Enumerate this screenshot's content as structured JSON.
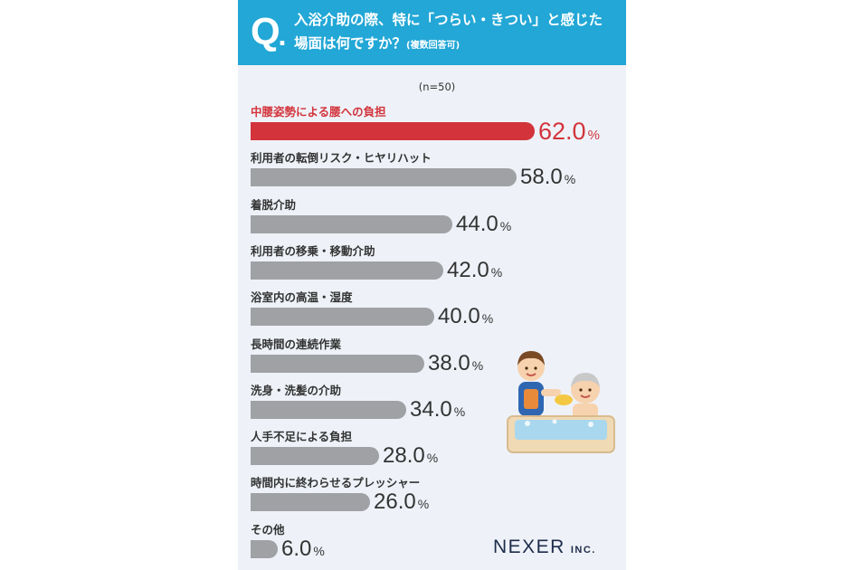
{
  "question": {
    "mark": "Q",
    "line1": "入浴介助の際、特に「つらい・きつい」と感じた",
    "line2": "場面は何ですか？",
    "note": "(複数回答可)"
  },
  "sample": "(n=50)",
  "logo": {
    "name": "NEXER",
    "suffix": "INC."
  },
  "colors": {
    "header": "#22a7d6",
    "highlight": "#d3343c",
    "bar": "#a0a1a5",
    "panel": "#eef2f8"
  },
  "chart_data": {
    "type": "bar",
    "orientation": "horizontal",
    "categories": [
      "中腰姿勢による腰への負担",
      "利用者の転倒リスク・ヒヤリハット",
      "着脱介助",
      "利用者の移乗・移動介助",
      "浴室内の高温・湿度",
      "長時間の連続作業",
      "洗身・洗髪の介助",
      "人手不足による負担",
      "時間内に終わらせるプレッシャー",
      "その他"
    ],
    "values": [
      62.0,
      58.0,
      44.0,
      42.0,
      40.0,
      38.0,
      34.0,
      28.0,
      26.0,
      6.0
    ],
    "value_labels": [
      "62.0",
      "58.0",
      "44.0",
      "42.0",
      "40.0",
      "38.0",
      "34.0",
      "28.0",
      "26.0",
      "6.0"
    ],
    "unit": "%",
    "highlight_index": 0
  }
}
